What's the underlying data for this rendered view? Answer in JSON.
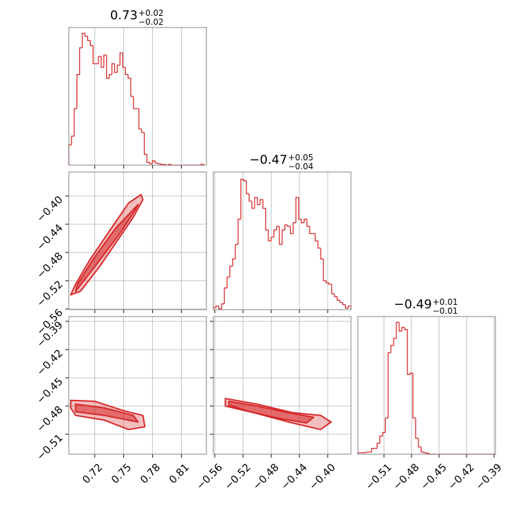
{
  "chart_data": [
    {
      "type": "histogram",
      "title": "0.73",
      "title_sup": "+0.02",
      "title_sub": "−0.02",
      "color": "#d62728",
      "grid": true,
      "xlim": [
        0.693,
        0.836
      ],
      "ylim": [
        0,
        190
      ],
      "xticks": [
        0.72,
        0.75,
        0.78,
        0.81
      ],
      "bins": [
        0.693,
        0.6958,
        0.6986,
        0.7014,
        0.7042,
        0.707,
        0.7098,
        0.7126,
        0.7154,
        0.7182,
        0.721,
        0.7238,
        0.7266,
        0.7294,
        0.7322,
        0.735,
        0.7378,
        0.7406,
        0.7434,
        0.7462,
        0.749,
        0.7518,
        0.7546,
        0.7574,
        0.7602,
        0.763,
        0.7658,
        0.7686,
        0.7714,
        0.7742,
        0.777,
        0.7798,
        0.7826,
        0.7854,
        0.7882,
        0.791,
        0.7938,
        0.7966,
        0.7994,
        0.8022,
        0.805,
        0.8078,
        0.8106,
        0.8134,
        0.8162,
        0.819,
        0.8218,
        0.8246,
        0.8274,
        0.8302,
        0.833
      ],
      "values": [
        28,
        40,
        78,
        125,
        162,
        182,
        178,
        172,
        165,
        140,
        140,
        150,
        135,
        152,
        120,
        125,
        140,
        128,
        138,
        155,
        135,
        125,
        120,
        95,
        78,
        78,
        50,
        45,
        15,
        4,
        2,
        6,
        3,
        2,
        1,
        1,
        0,
        1,
        0,
        0,
        0,
        0,
        0,
        0,
        0,
        0,
        0,
        0,
        0,
        1
      ]
    },
    {
      "type": "contour",
      "color": "#d62728",
      "grid": true,
      "xlim": [
        0.693,
        0.836
      ],
      "ylim": [
        -0.561,
        -0.366
      ],
      "xticks": [
        0.72,
        0.75,
        0.78,
        0.81
      ],
      "yticks": [
        {
          "value": -0.4,
          "label": "−0.40"
        },
        {
          "value": -0.44,
          "label": "−0.44"
        },
        {
          "value": -0.48,
          "label": "−0.48"
        },
        {
          "value": -0.52,
          "label": "−0.52"
        },
        {
          "value": -0.56,
          "label": "−0.56"
        }
      ],
      "contours": [
        {
          "x": [
            0.695,
            0.705,
            0.725,
            0.745,
            0.76,
            0.77,
            0.768,
            0.755,
            0.735,
            0.715,
            0.7
          ],
          "y": [
            -0.54,
            -0.535,
            -0.5,
            -0.46,
            -0.43,
            -0.405,
            -0.398,
            -0.41,
            -0.45,
            -0.49,
            -0.525
          ]
        },
        {
          "x": [
            0.7,
            0.72,
            0.745,
            0.762,
            0.765,
            0.742,
            0.718,
            0.702
          ],
          "y": [
            -0.535,
            -0.5,
            -0.455,
            -0.42,
            -0.412,
            -0.445,
            -0.49,
            -0.525
          ]
        }
      ]
    },
    {
      "type": "histogram",
      "title": "−0.47",
      "title_sup": "+0.05",
      "title_sub": "−0.04",
      "color": "#d62728",
      "grid": true,
      "xlim": [
        -0.562,
        -0.367
      ],
      "ylim": [
        0,
        190
      ],
      "xticks": [
        -0.56,
        -0.52,
        -0.48,
        -0.44,
        -0.4
      ],
      "bins": [
        -0.562,
        -0.5581,
        -0.5542,
        -0.5503,
        -0.5464,
        -0.5425,
        -0.5386,
        -0.5347,
        -0.5308,
        -0.5269,
        -0.523,
        -0.5191,
        -0.5152,
        -0.5113,
        -0.5074,
        -0.5035,
        -0.4996,
        -0.4957,
        -0.4918,
        -0.4879,
        -0.484,
        -0.4801,
        -0.4762,
        -0.4723,
        -0.4684,
        -0.4645,
        -0.4606,
        -0.4567,
        -0.4528,
        -0.4489,
        -0.445,
        -0.4411,
        -0.4372,
        -0.4333,
        -0.4294,
        -0.4255,
        -0.4216,
        -0.4177,
        -0.4138,
        -0.4099,
        -0.406,
        -0.4021,
        -0.3982,
        -0.3943,
        -0.3904,
        -0.3865,
        -0.3826,
        -0.3787,
        -0.3748,
        -0.3709,
        -0.367
      ],
      "values": [
        3,
        5,
        1,
        8,
        30,
        45,
        60,
        70,
        90,
        125,
        180,
        178,
        160,
        150,
        140,
        155,
        145,
        152,
        140,
        110,
        95,
        100,
        110,
        115,
        90,
        110,
        117,
        115,
        105,
        120,
        155,
        125,
        120,
        125,
        115,
        105,
        105,
        95,
        85,
        70,
        40,
        37,
        35,
        22,
        18,
        13,
        10,
        7,
        2,
        5
      ]
    },
    {
      "type": "contour",
      "color": "#d62728",
      "grid": true,
      "xlim": [
        0.693,
        0.836
      ],
      "ylim": [
        -0.5312,
        -0.3849
      ],
      "xticks": [
        {
          "value": 0.72,
          "label": "0.72"
        },
        {
          "value": 0.75,
          "label": "0.75"
        },
        {
          "value": 0.78,
          "label": "0.78"
        },
        {
          "value": 0.81,
          "label": "0.81"
        }
      ],
      "yticks": [
        {
          "value": -0.39,
          "label": "−0.39"
        },
        {
          "value": -0.42,
          "label": "−0.42"
        },
        {
          "value": -0.45,
          "label": "−0.45"
        },
        {
          "value": -0.48,
          "label": "−0.48"
        },
        {
          "value": -0.51,
          "label": "−0.51"
        }
      ],
      "contours": [
        {
          "x": [
            0.695,
            0.72,
            0.75,
            0.77,
            0.772,
            0.755,
            0.73,
            0.7,
            0.695
          ],
          "y": [
            -0.474,
            -0.475,
            -0.485,
            -0.49,
            -0.502,
            -0.505,
            -0.495,
            -0.49,
            -0.482
          ]
        },
        {
          "x": [
            0.7,
            0.73,
            0.76,
            0.765,
            0.73,
            0.7
          ],
          "y": [
            -0.478,
            -0.482,
            -0.49,
            -0.497,
            -0.49,
            -0.486
          ]
        }
      ]
    },
    {
      "type": "contour",
      "color": "#d62728",
      "grid": true,
      "xlim": [
        -0.562,
        -0.367
      ],
      "ylim": [
        -0.5312,
        -0.3849
      ],
      "xticks": [
        {
          "value": -0.56,
          "label": "−0.56"
        },
        {
          "value": -0.52,
          "label": "−0.52"
        },
        {
          "value": -0.48,
          "label": "−0.48"
        },
        {
          "value": -0.44,
          "label": "−0.44"
        },
        {
          "value": -0.4,
          "label": "−0.40"
        }
      ],
      "yticks": [
        -0.39,
        -0.42,
        -0.45,
        -0.48,
        -0.51
      ],
      "contours": [
        {
          "x": [
            -0.545,
            -0.5,
            -0.45,
            -0.41,
            -0.395,
            -0.41,
            -0.45,
            -0.5,
            -0.545
          ],
          "y": [
            -0.472,
            -0.478,
            -0.487,
            -0.49,
            -0.497,
            -0.505,
            -0.498,
            -0.488,
            -0.48
          ]
        },
        {
          "x": [
            -0.54,
            -0.5,
            -0.45,
            -0.42,
            -0.43,
            -0.47,
            -0.51,
            -0.54
          ],
          "y": [
            -0.475,
            -0.48,
            -0.488,
            -0.492,
            -0.498,
            -0.493,
            -0.486,
            -0.479
          ]
        }
      ]
    },
    {
      "type": "histogram",
      "title": "−0.49",
      "title_sup": "+0.01",
      "title_sub": "−0.01",
      "color": "#d62728",
      "grid": true,
      "xlim": [
        -0.5385,
        -0.3885
      ],
      "ylim": [
        0,
        190
      ],
      "xticks": [
        {
          "value": -0.51,
          "label": "−0.51"
        },
        {
          "value": -0.48,
          "label": "−0.48"
        },
        {
          "value": -0.45,
          "label": "−0.45"
        },
        {
          "value": -0.42,
          "label": "−0.42"
        },
        {
          "value": -0.39,
          "label": "−0.39"
        }
      ],
      "bins": [
        -0.5385,
        -0.5355,
        -0.5325,
        -0.5295,
        -0.5265,
        -0.5235,
        -0.5205,
        -0.5175,
        -0.5145,
        -0.5115,
        -0.5085,
        -0.5055,
        -0.5025,
        -0.4995,
        -0.4965,
        -0.4935,
        -0.4905,
        -0.4875,
        -0.4845,
        -0.4815,
        -0.4785,
        -0.4755,
        -0.4725,
        -0.4695,
        -0.4665,
        -0.4635,
        -0.4605,
        -0.4575,
        -0.4545,
        -0.4515,
        -0.4485,
        -0.4455,
        -0.4425,
        -0.4395,
        -0.4365,
        -0.4335,
        -0.4305,
        -0.4275,
        -0.4245,
        -0.4215,
        -0.4185,
        -0.4155,
        -0.4125,
        -0.4095,
        -0.4065,
        -0.4035,
        -0.4005,
        -0.3975,
        -0.3945,
        -0.3915,
        -0.3885
      ],
      "values": [
        2,
        2,
        2,
        3,
        3,
        8,
        8,
        15,
        25,
        30,
        50,
        140,
        150,
        160,
        182,
        170,
        175,
        172,
        110,
        112,
        50,
        22,
        10,
        3,
        2,
        1,
        0,
        0,
        0,
        0,
        0,
        0,
        0,
        0,
        0,
        0,
        0,
        0,
        0,
        0,
        0,
        0,
        0,
        0,
        0,
        0,
        0,
        0,
        0,
        0
      ]
    }
  ]
}
